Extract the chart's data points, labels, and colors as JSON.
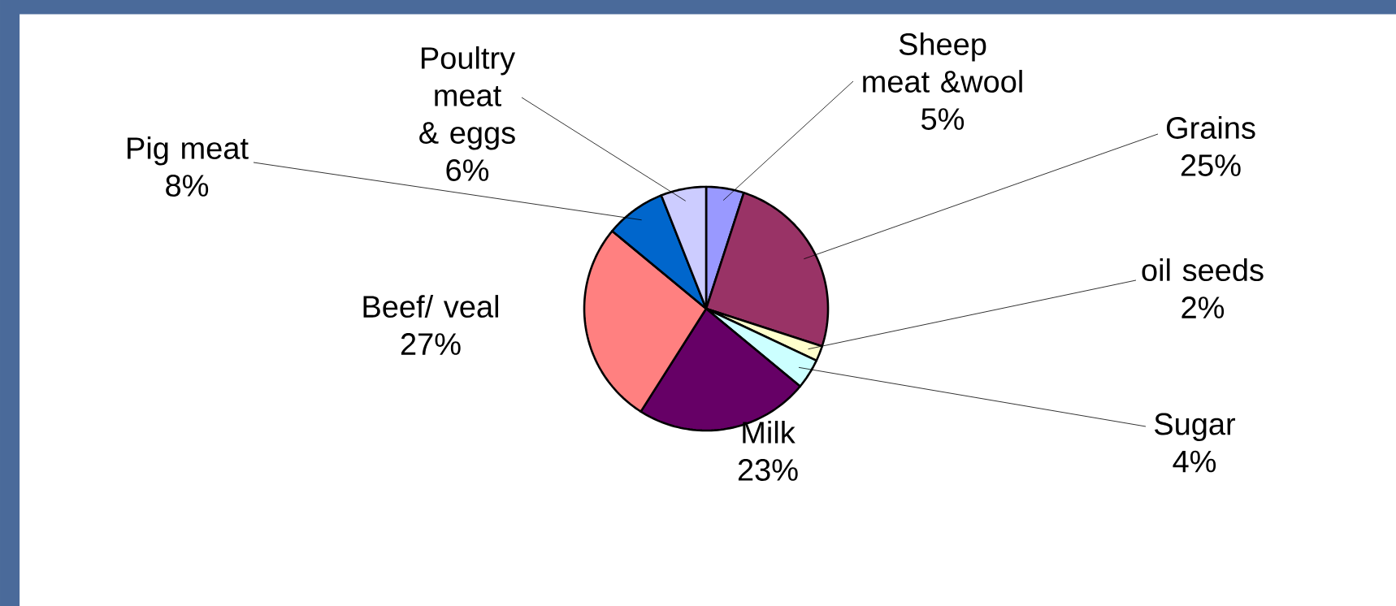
{
  "chart_data": {
    "type": "pie",
    "categories": [
      "Sheep meat &wool",
      "Grains",
      "oil seeds",
      "Sugar",
      "Milk",
      "Beef/ veal",
      "Pig meat",
      "Poultry meat & eggs"
    ],
    "values": [
      5,
      25,
      2,
      4,
      23,
      27,
      8,
      6
    ],
    "value_labels": [
      "5%",
      "25%",
      "2%",
      "4%",
      "23%",
      "27%",
      "8%",
      "6%"
    ],
    "colors": [
      "#9999ff",
      "#993366",
      "#ffffcc",
      "#ccffff",
      "#660066",
      "#ff8080",
      "#0066cc",
      "#ccccff"
    ]
  }
}
